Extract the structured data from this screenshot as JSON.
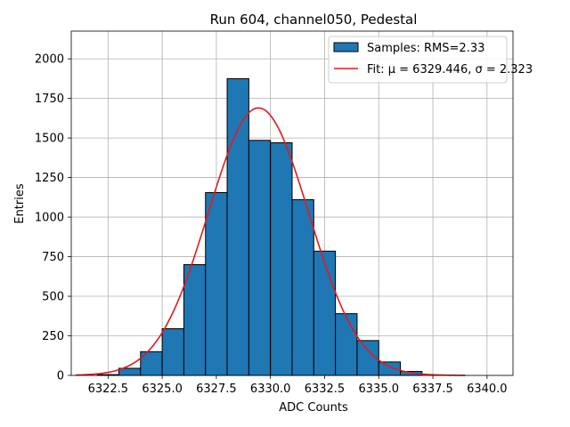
{
  "chart_data": {
    "type": "bar",
    "title": "Run 604, channel050, Pedestal",
    "xlabel": "ADC Counts",
    "ylabel": "Entries",
    "xlim": [
      6320.8,
      6341.2
    ],
    "ylim": [
      0,
      2175
    ],
    "grid": true,
    "legend_position": "top-right",
    "xticks": [
      6322.5,
      6325.0,
      6327.5,
      6330.0,
      6332.5,
      6335.0,
      6337.5,
      6340.0
    ],
    "xtick_labels": [
      "6322.5",
      "6325.0",
      "6327.5",
      "6330.0",
      "6332.5",
      "6335.0",
      "6337.5",
      "6340.0"
    ],
    "yticks": [
      0,
      250,
      500,
      750,
      1000,
      1250,
      1500,
      1750,
      2000
    ],
    "ytick_labels": [
      "0",
      "250",
      "500",
      "750",
      "1000",
      "1250",
      "1500",
      "1750",
      "2000"
    ],
    "histogram": {
      "name": "Samples: RMS=2.33",
      "color": "#1f77b4",
      "edgecolor": "#000000",
      "bin_edges": [
        6322,
        6323,
        6324,
        6325,
        6326,
        6327,
        6328,
        6329,
        6330,
        6331,
        6332,
        6333,
        6334,
        6335,
        6336,
        6337
      ],
      "counts": [
        5,
        45,
        150,
        295,
        700,
        1155,
        1875,
        1485,
        1470,
        1110,
        785,
        390,
        220,
        85,
        25
      ]
    },
    "fit": {
      "name": "Fit: μ = 6329.446, σ = 2.323",
      "color": "#e41a1c",
      "mu": 6329.446,
      "sigma": 2.323,
      "amplitude": 1690,
      "x_range": [
        6321,
        6339
      ]
    }
  }
}
